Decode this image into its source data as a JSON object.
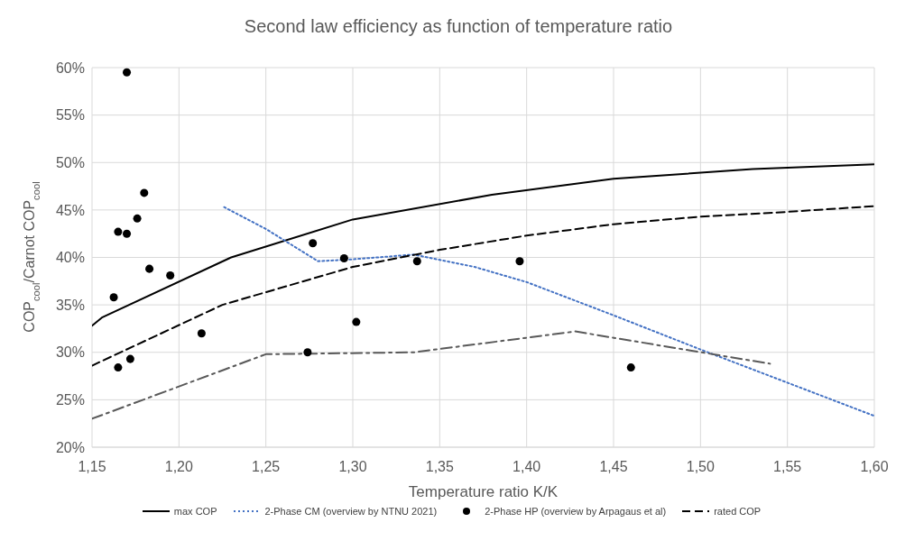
{
  "chart_data": {
    "type": "line",
    "title": "Second law efficiency as function of temperature ratio",
    "xlabel": "Temperature ratio K/K",
    "ylabel": "COP$_{cool}$/Carnot COP$_{cool}$",
    "xlim": [
      1.15,
      1.6
    ],
    "xticks": [
      {
        "value": 1.15,
        "label": "1,15"
      },
      {
        "value": 1.2,
        "label": "1,20"
      },
      {
        "value": 1.25,
        "label": "1,25"
      },
      {
        "value": 1.3,
        "label": "1,30"
      },
      {
        "value": 1.35,
        "label": "1,35"
      },
      {
        "value": 1.4,
        "label": "1,40"
      },
      {
        "value": 1.45,
        "label": "1,45"
      },
      {
        "value": 1.5,
        "label": "1,50"
      },
      {
        "value": 1.55,
        "label": "1,55"
      },
      {
        "value": 1.6,
        "label": "1,60"
      }
    ],
    "ylim": [
      20,
      60
    ],
    "yticks": [
      {
        "value": 20,
        "label": "20%"
      },
      {
        "value": 25,
        "label": "25%"
      },
      {
        "value": 30,
        "label": "30%"
      },
      {
        "value": 35,
        "label": "35%"
      },
      {
        "value": 40,
        "label": "40%"
      },
      {
        "value": 45,
        "label": "45%"
      },
      {
        "value": 50,
        "label": "50%"
      },
      {
        "value": 55,
        "label": "55%"
      },
      {
        "value": 60,
        "label": "60%"
      }
    ],
    "grid": true,
    "legend": "bottom",
    "series": [
      {
        "name": "max COP",
        "color": "#000000",
        "line_style": "solid",
        "marker": "none",
        "x": [
          1.15,
          1.156,
          1.23,
          1.3,
          1.38,
          1.45,
          1.53,
          1.6
        ],
        "values": [
          32.8,
          33.7,
          40.0,
          44.0,
          46.6,
          48.3,
          49.3,
          49.8
        ]
      },
      {
        "name": "2-Phase CM (overview by NTNU 2021)",
        "color": "#4472c4",
        "line_style": "dotted",
        "marker": "none",
        "x": [
          1.226,
          1.25,
          1.28,
          1.3,
          1.335,
          1.37,
          1.4,
          1.45,
          1.5,
          1.55,
          1.6
        ],
        "values": [
          45.3,
          43.0,
          39.6,
          39.8,
          40.3,
          39.0,
          37.4,
          33.9,
          30.3,
          26.8,
          23.3
        ]
      },
      {
        "name": "2-Phase HP (overview by Arpagaus et al)",
        "type": "scatter",
        "color": "#000000",
        "marker": "circle",
        "x": [
          1.17,
          1.165,
          1.17,
          1.176,
          1.18,
          1.183,
          1.195,
          1.1625,
          1.165,
          1.172,
          1.213,
          1.274,
          1.277,
          1.295,
          1.302,
          1.337,
          1.396,
          1.46
        ],
        "values": [
          59.5,
          42.7,
          42.5,
          44.1,
          46.8,
          38.8,
          38.1,
          35.8,
          28.4,
          29.3,
          32.0,
          30.0,
          41.5,
          39.9,
          33.2,
          39.6,
          39.6,
          28.4
        ]
      },
      {
        "color": "#595959",
        "line_style": "dashdot",
        "marker": "none",
        "x": [
          1.15,
          1.25,
          1.335,
          1.428,
          1.54
        ],
        "values": [
          23.0,
          29.8,
          30.0,
          32.2,
          28.8
        ]
      },
      {
        "name": "rated COP",
        "color": "#000000",
        "line_style": "dashed",
        "marker": "none",
        "x": [
          1.15,
          1.225,
          1.3,
          1.35,
          1.4,
          1.45,
          1.5,
          1.55,
          1.6
        ],
        "values": [
          28.6,
          35.0,
          39.0,
          40.8,
          42.3,
          43.5,
          44.3,
          44.8,
          45.4
        ]
      }
    ]
  }
}
